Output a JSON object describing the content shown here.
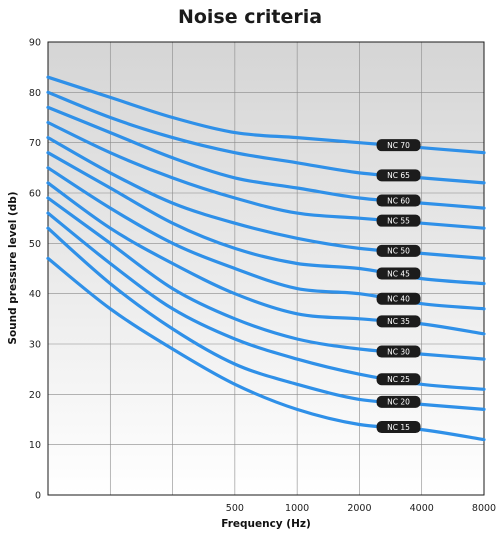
{
  "chart_data": {
    "type": "line",
    "title": "Noise criteria",
    "xlabel": "Frequency (Hz)",
    "ylabel": "Sound pressure level (db)",
    "x_tick_labels": [
      "",
      "",
      "",
      "500",
      "1000",
      "2000",
      "4000",
      "8000"
    ],
    "y_ticks": [
      0,
      10,
      20,
      30,
      40,
      50,
      60,
      70,
      80,
      90
    ],
    "ylim": [
      0,
      90
    ],
    "grid": true,
    "line_color": "#2f90e8",
    "badge_color": "#1c1c1c",
    "plot_gradient": [
      "#d5d5d5",
      "#ffffff"
    ],
    "series": [
      {
        "name": "NC 70",
        "values": [
          83,
          79,
          75,
          72,
          71,
          70,
          69,
          68
        ]
      },
      {
        "name": "NC 65",
        "values": [
          80,
          75,
          71,
          68,
          66,
          64,
          63,
          62
        ]
      },
      {
        "name": "NC 60",
        "values": [
          77,
          72,
          67,
          63,
          61,
          59,
          58,
          57
        ]
      },
      {
        "name": "NC 55",
        "values": [
          74,
          68,
          63,
          59,
          56,
          55,
          54,
          53
        ]
      },
      {
        "name": "NC 50",
        "values": [
          71,
          64,
          58,
          54,
          51,
          49,
          48,
          47
        ]
      },
      {
        "name": "NC 45",
        "values": [
          68,
          61,
          54,
          49,
          46,
          45,
          43,
          42
        ]
      },
      {
        "name": "NC 40",
        "values": [
          65,
          57,
          50,
          45,
          41,
          40,
          38,
          37
        ]
      },
      {
        "name": "NC 35",
        "values": [
          62,
          53,
          46,
          40,
          36,
          35,
          34,
          32
        ]
      },
      {
        "name": "NC 30",
        "values": [
          59,
          50,
          41,
          35,
          31,
          29,
          28,
          27
        ]
      },
      {
        "name": "NC 25",
        "values": [
          56,
          46,
          37,
          31,
          27,
          24,
          22,
          21
        ]
      },
      {
        "name": "NC 20",
        "values": [
          53,
          42,
          33,
          26,
          22,
          19,
          18,
          17
        ]
      },
      {
        "name": "NC 15",
        "values": [
          47,
          37,
          29,
          22,
          17,
          14,
          13,
          11
        ]
      }
    ]
  }
}
